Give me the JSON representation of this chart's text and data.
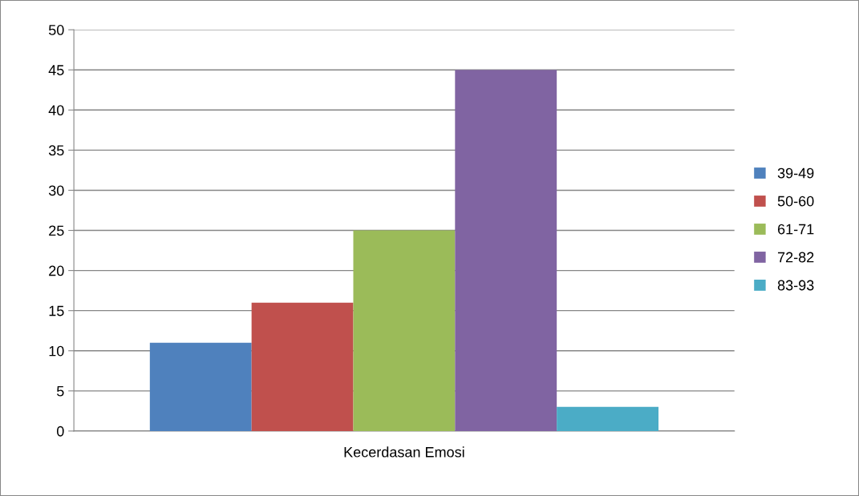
{
  "chart_data": {
    "type": "bar",
    "categories": [
      "Kecerdasan Emosi"
    ],
    "series": [
      {
        "name": "39-49",
        "color": "#4f81bd",
        "values": [
          11
        ]
      },
      {
        "name": "50-60",
        "color": "#c0504d",
        "values": [
          16
        ]
      },
      {
        "name": "61-71",
        "color": "#9bbb59",
        "values": [
          25
        ]
      },
      {
        "name": "72-82",
        "color": "#8064a2",
        "values": [
          45
        ]
      },
      {
        "name": "83-93",
        "color": "#4bacc6",
        "values": [
          3
        ]
      }
    ],
    "ylim": [
      0,
      50
    ],
    "yticks": [
      0,
      5,
      10,
      15,
      20,
      25,
      30,
      35,
      40,
      45,
      50
    ],
    "grid": "y",
    "legend": "right"
  }
}
